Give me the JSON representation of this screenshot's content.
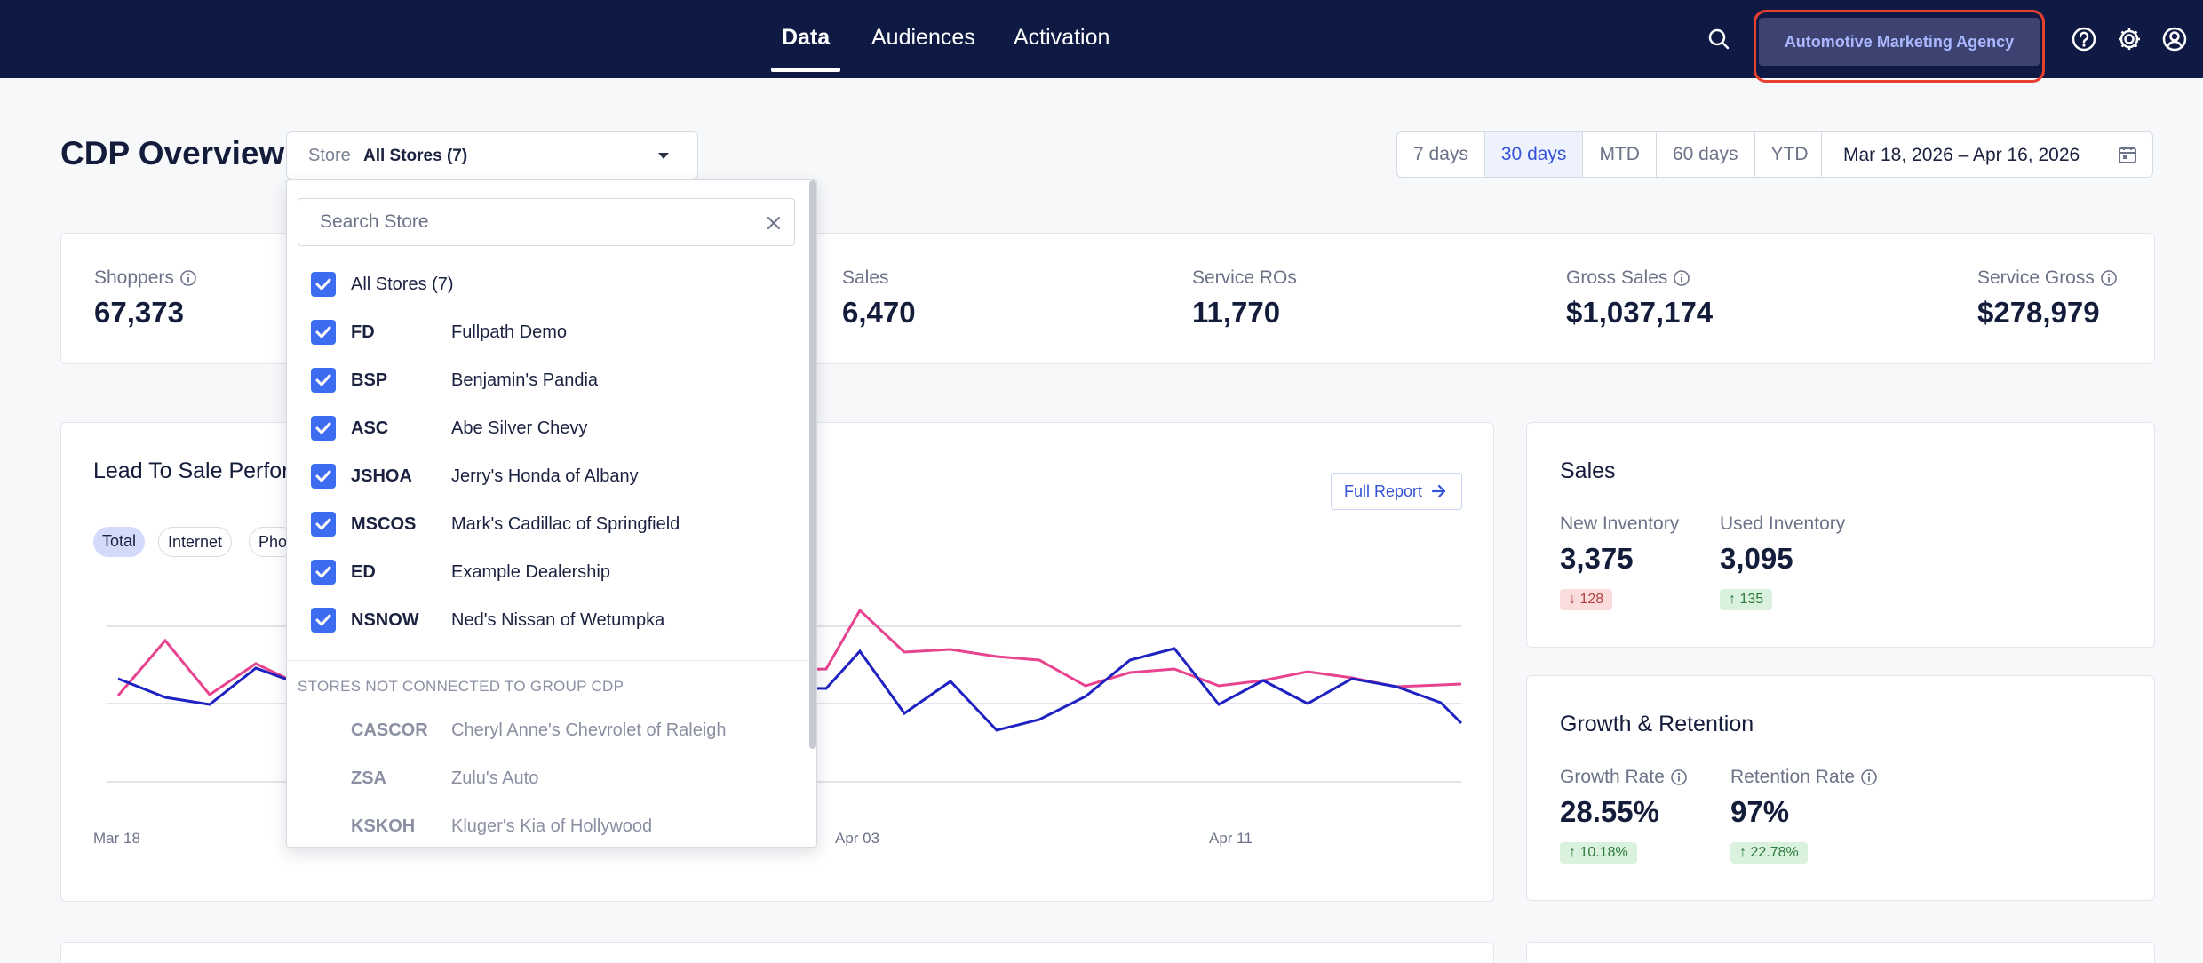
{
  "nav": {
    "tabs": [
      {
        "label": "Data",
        "active": true
      },
      {
        "label": "Audiences",
        "active": false
      },
      {
        "label": "Activation",
        "active": false
      }
    ],
    "agency_label": "Automotive Marketing Agency",
    "icons": [
      "search-icon",
      "help-icon",
      "gear-icon",
      "user-icon"
    ]
  },
  "header": {
    "title": "CDP Overview",
    "store_label": "Store",
    "store_value": "All Stores (7)",
    "ranges": [
      {
        "label": "7 days",
        "active": false
      },
      {
        "label": "30 days",
        "active": true
      },
      {
        "label": "MTD",
        "active": false
      },
      {
        "label": "60 days",
        "active": false
      },
      {
        "label": "YTD",
        "active": false
      }
    ],
    "date_range": "Mar 18, 2026 – Apr 16, 2026"
  },
  "kpis": [
    {
      "label": "Shoppers",
      "value": "67,373",
      "info": true
    },
    {
      "label": "Sales",
      "value": "6,470",
      "info": false
    },
    {
      "label": "Service ROs",
      "value": "11,770",
      "info": false
    },
    {
      "label": "Gross Sales",
      "value": "$1,037,174",
      "info": true
    },
    {
      "label": "Service Gross",
      "value": "$278,979",
      "info": true
    }
  ],
  "lead_chart": {
    "title": "Lead To Sale Perfor",
    "full_report": "Full Report",
    "pills": [
      {
        "label": "Total",
        "active": true
      },
      {
        "label": "Internet",
        "active": false
      },
      {
        "label": "Pho",
        "active": false
      }
    ],
    "x_ticks": [
      "Mar 18",
      "Apr 03",
      "Apr 11"
    ],
    "colors": {
      "pink": "#e8438f",
      "navy": "#1f22c0",
      "grid": "#e3e5ea"
    }
  },
  "sales_card": {
    "title": "Sales",
    "items": [
      {
        "label": "New Inventory",
        "value": "3,375",
        "delta": "128",
        "direction": "down"
      },
      {
        "label": "Used Inventory",
        "value": "3,095",
        "delta": "135",
        "direction": "up"
      }
    ]
  },
  "growth_card": {
    "title": "Growth & Retention",
    "items": [
      {
        "label": "Growth Rate",
        "value": "28.55%",
        "delta": "10.18%",
        "direction": "up"
      },
      {
        "label": "Retention Rate",
        "value": "97%",
        "delta": "22.78%",
        "direction": "up"
      }
    ]
  },
  "dropdown": {
    "search_placeholder": "Search Store",
    "all_label": "All Stores (7)",
    "stores": [
      {
        "code": "FD",
        "name": "Fullpath Demo"
      },
      {
        "code": "BSP",
        "name": "Benjamin's Pandia"
      },
      {
        "code": "ASC",
        "name": "Abe Silver Chevy"
      },
      {
        "code": "JSHOA",
        "name": "Jerry's Honda of Albany"
      },
      {
        "code": "MSCOS",
        "name": "Mark's Cadillac of Springfield"
      },
      {
        "code": "ED",
        "name": "Example Dealership"
      },
      {
        "code": "NSNOW",
        "name": "Ned's Nissan of Wetumpka"
      }
    ],
    "section_label": "STORES NOT CONNECTED TO GROUP CDP",
    "disconnected": [
      {
        "code": "CASCOR",
        "name": "Cheryl Anne's Chevrolet of Raleigh"
      },
      {
        "code": "ZSA",
        "name": "Zulu's Auto"
      },
      {
        "code": "KSKOH",
        "name": "Kluger's Kia of Hollywood"
      }
    ]
  }
}
